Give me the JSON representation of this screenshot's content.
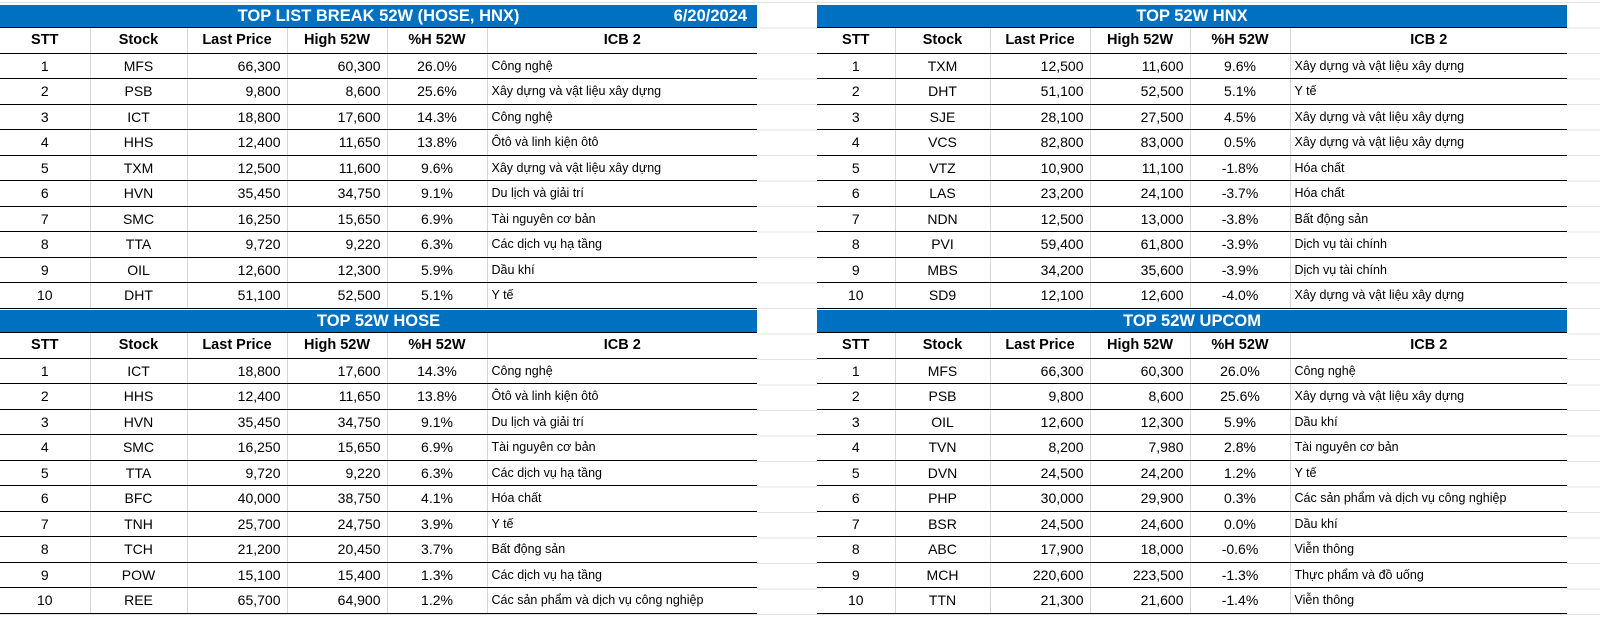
{
  "headers": [
    "STT",
    "Stock",
    "Last Price",
    "High 52W",
    "%H 52W",
    "ICB 2"
  ],
  "colors": {
    "title_bg": "#0070C0",
    "title_text": "#FFFFFF"
  },
  "tables": [
    {
      "title": "TOP LIST BREAK 52W (HOSE, HNX)",
      "date": "6/20/2024",
      "rows": [
        [
          "1",
          "MFS",
          "66,300",
          "60,300",
          "26.0%",
          "Công nghệ"
        ],
        [
          "2",
          "PSB",
          "9,800",
          "8,600",
          "25.6%",
          "Xây dựng và vật liệu xây dựng"
        ],
        [
          "3",
          "ICT",
          "18,800",
          "17,600",
          "14.3%",
          "Công nghệ"
        ],
        [
          "4",
          "HHS",
          "12,400",
          "11,650",
          "13.8%",
          "Ôtô và linh kiện ôtô"
        ],
        [
          "5",
          "TXM",
          "12,500",
          "11,600",
          "9.6%",
          "Xây dựng và vật liệu xây dựng"
        ],
        [
          "6",
          "HVN",
          "35,450",
          "34,750",
          "9.1%",
          "Du lịch và giải trí"
        ],
        [
          "7",
          "SMC",
          "16,250",
          "15,650",
          "6.9%",
          "Tài nguyên cơ bản"
        ],
        [
          "8",
          "TTA",
          "9,720",
          "9,220",
          "6.3%",
          "Các dịch vụ hạ tầng"
        ],
        [
          "9",
          "OIL",
          "12,600",
          "12,300",
          "5.9%",
          "Dầu khí"
        ],
        [
          "10",
          "DHT",
          "51,100",
          "52,500",
          "5.1%",
          "Y tế"
        ]
      ]
    },
    {
      "title": "TOP 52W HNX",
      "rows": [
        [
          "1",
          "TXM",
          "12,500",
          "11,600",
          "9.6%",
          "Xây dựng và vật liệu xây dựng"
        ],
        [
          "2",
          "DHT",
          "51,100",
          "52,500",
          "5.1%",
          "Y tế"
        ],
        [
          "3",
          "SJE",
          "28,100",
          "27,500",
          "4.5%",
          "Xây dựng và vật liệu xây dựng"
        ],
        [
          "4",
          "VCS",
          "82,800",
          "83,000",
          "0.5%",
          "Xây dựng và vật liệu xây dựng"
        ],
        [
          "5",
          "VTZ",
          "10,900",
          "11,100",
          "-1.8%",
          "Hóa chất"
        ],
        [
          "6",
          "LAS",
          "23,200",
          "24,100",
          "-3.7%",
          "Hóa chất"
        ],
        [
          "7",
          "NDN",
          "12,500",
          "13,000",
          "-3.8%",
          "Bất động sản"
        ],
        [
          "8",
          "PVI",
          "59,400",
          "61,800",
          "-3.9%",
          "Dịch vụ tài chính"
        ],
        [
          "9",
          "MBS",
          "34,200",
          "35,600",
          "-3.9%",
          "Dịch vụ tài chính"
        ],
        [
          "10",
          "SD9",
          "12,100",
          "12,600",
          "-4.0%",
          "Xây dựng và vật liệu xây dựng"
        ]
      ]
    },
    {
      "title": "TOP 52W HOSE",
      "rows": [
        [
          "1",
          "ICT",
          "18,800",
          "17,600",
          "14.3%",
          "Công nghệ"
        ],
        [
          "2",
          "HHS",
          "12,400",
          "11,650",
          "13.8%",
          "Ôtô và linh kiện ôtô"
        ],
        [
          "3",
          "HVN",
          "35,450",
          "34,750",
          "9.1%",
          "Du lịch và giải trí"
        ],
        [
          "4",
          "SMC",
          "16,250",
          "15,650",
          "6.9%",
          "Tài nguyên cơ bản"
        ],
        [
          "5",
          "TTA",
          "9,720",
          "9,220",
          "6.3%",
          "Các dịch vụ hạ tầng"
        ],
        [
          "6",
          "BFC",
          "40,000",
          "38,750",
          "4.1%",
          "Hóa chất"
        ],
        [
          "7",
          "TNH",
          "25,700",
          "24,750",
          "3.9%",
          "Y tế"
        ],
        [
          "8",
          "TCH",
          "21,200",
          "20,450",
          "3.7%",
          "Bất động sản"
        ],
        [
          "9",
          "POW",
          "15,100",
          "15,400",
          "1.3%",
          "Các dịch vụ hạ tầng"
        ],
        [
          "10",
          "REE",
          "65,700",
          "64,900",
          "1.2%",
          "Các sản phẩm và dịch vụ công nghiệp"
        ]
      ]
    },
    {
      "title": "TOP 52W UPCOM",
      "rows": [
        [
          "1",
          "MFS",
          "66,300",
          "60,300",
          "26.0%",
          "Công nghệ"
        ],
        [
          "2",
          "PSB",
          "9,800",
          "8,600",
          "25.6%",
          "Xây dựng và vật liệu xây dựng"
        ],
        [
          "3",
          "OIL",
          "12,600",
          "12,300",
          "5.9%",
          "Dầu khí"
        ],
        [
          "4",
          "TVN",
          "8,200",
          "7,980",
          "2.8%",
          "Tài nguyên cơ bản"
        ],
        [
          "5",
          "DVN",
          "24,500",
          "24,200",
          "1.2%",
          "Y tế"
        ],
        [
          "6",
          "PHP",
          "30,000",
          "29,900",
          "0.3%",
          "Các sản phẩm và dịch vụ công nghiệp"
        ],
        [
          "7",
          "BSR",
          "24,500",
          "24,600",
          "0.0%",
          "Dầu khí"
        ],
        [
          "8",
          "ABC",
          "17,900",
          "18,000",
          "-0.6%",
          "Viễn thông"
        ],
        [
          "9",
          "MCH",
          "220,600",
          "223,500",
          "-1.3%",
          "Thực phẩm và đồ uống"
        ],
        [
          "10",
          "TTN",
          "21,300",
          "21,600",
          "-1.4%",
          "Viễn thông"
        ]
      ]
    }
  ]
}
